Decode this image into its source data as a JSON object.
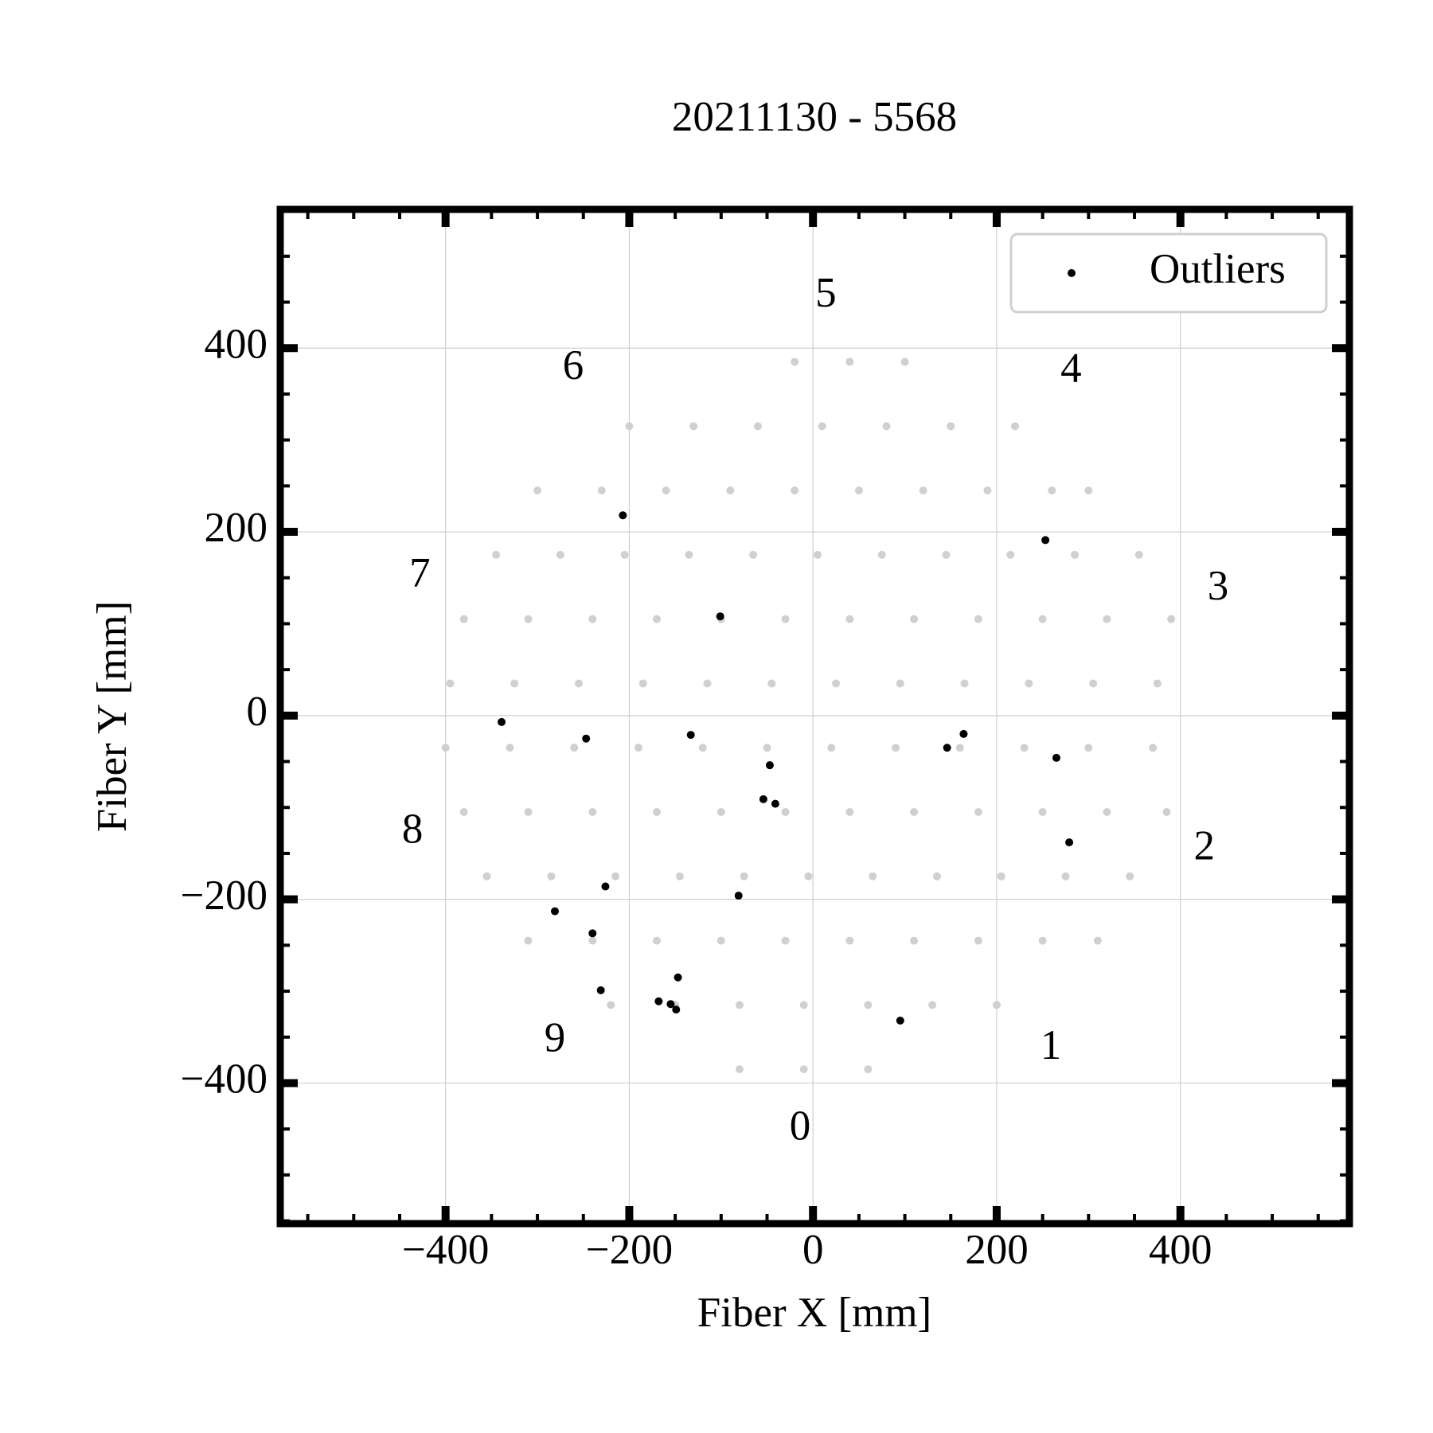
{
  "chart_data": {
    "type": "scatter",
    "title": "20211130 - 5568",
    "x_label": "Fiber X [mm]",
    "y_label": "Fiber Y [mm]",
    "xlim": [
      -580,
      584
    ],
    "ylim": [
      -553,
      551
    ],
    "xticks": [
      {
        "value": -400,
        "label": "−400"
      },
      {
        "value": -200,
        "label": "−200"
      },
      0,
      200,
      400
    ],
    "yticks": [
      {
        "value": -400,
        "label": "−400"
      },
      {
        "value": -200,
        "label": "−200"
      },
      0,
      200,
      400
    ],
    "xminorticks": [
      -550,
      -500,
      -450,
      -350,
      -300,
      -250,
      -150,
      -100,
      -50,
      50,
      100,
      150,
      250,
      300,
      350,
      450,
      500,
      550
    ],
    "yminorticks": [
      -550,
      -500,
      -450,
      -350,
      -300,
      -250,
      -150,
      -100,
      -50,
      50,
      100,
      150,
      250,
      300,
      350,
      450,
      500,
      550
    ],
    "grid": true,
    "legend": "upper right",
    "series": [
      {
        "color": "#d0d0d0",
        "x": [
          -20,
          40,
          100,
          -200,
          -130,
          -60,
          10,
          80,
          150,
          220,
          -300,
          -230,
          -160,
          -90,
          -20,
          50,
          120,
          190,
          260,
          300,
          -345,
          -275,
          -205,
          -135,
          -65,
          5,
          75,
          145,
          215,
          285,
          355,
          -380,
          -310,
          -240,
          -170,
          -100,
          -30,
          40,
          110,
          180,
          250,
          320,
          390,
          -395,
          -325,
          -255,
          -185,
          -115,
          -45,
          25,
          95,
          165,
          235,
          305,
          375,
          -400,
          -330,
          -260,
          -190,
          -120,
          -50,
          20,
          90,
          160,
          230,
          300,
          370,
          -380,
          -310,
          -240,
          -170,
          -100,
          -30,
          40,
          110,
          180,
          250,
          320,
          385,
          -355,
          -285,
          -215,
          -145,
          -75,
          -5,
          65,
          135,
          205,
          275,
          345,
          -310,
          -240,
          -170,
          -100,
          -30,
          40,
          110,
          180,
          250,
          310,
          -220,
          -150,
          -80,
          -10,
          60,
          130,
          200,
          -80,
          -10,
          60
        ],
        "values": [
          385,
          385,
          385,
          315,
          315,
          315,
          315,
          315,
          315,
          315,
          245,
          245,
          245,
          245,
          245,
          245,
          245,
          245,
          245,
          245,
          175,
          175,
          175,
          175,
          175,
          175,
          175,
          175,
          175,
          175,
          175,
          105,
          105,
          105,
          105,
          105,
          105,
          105,
          105,
          105,
          105,
          105,
          105,
          35,
          35,
          35,
          35,
          35,
          35,
          35,
          35,
          35,
          35,
          35,
          35,
          -35,
          -35,
          -35,
          -35,
          -35,
          -35,
          -35,
          -35,
          -35,
          -35,
          -35,
          -35,
          -105,
          -105,
          -105,
          -105,
          -105,
          -105,
          -105,
          -105,
          -105,
          -105,
          -105,
          -105,
          -175,
          -175,
          -175,
          -175,
          -175,
          -175,
          -175,
          -175,
          -175,
          -175,
          -175,
          -245,
          -245,
          -245,
          -245,
          -245,
          -245,
          -245,
          -245,
          -245,
          -245,
          -315,
          -315,
          -315,
          -315,
          -315,
          -315,
          -315,
          -385,
          -385,
          -385
        ]
      },
      {
        "name": "Outliers",
        "color": "#000000",
        "x": [
          -339,
          -247,
          -133,
          -101,
          -207,
          -47,
          -54,
          -41,
          -81,
          -226,
          -281,
          -240,
          -231,
          -147,
          -168,
          -155,
          -149,
          95,
          146,
          164,
          253,
          265,
          279
        ],
        "values": [
          -7,
          -25,
          -21,
          108,
          218,
          -54,
          -91,
          -96,
          -196,
          -186,
          -213,
          -237,
          -299,
          -285,
          -311,
          -314,
          -320,
          -332,
          -35,
          -20,
          191,
          -46,
          -138
        ]
      }
    ],
    "annotations": [
      {
        "text": "0",
        "x": -14,
        "y": -451
      },
      {
        "text": "1",
        "x": 259,
        "y": -363
      },
      {
        "text": "2",
        "x": 426,
        "y": -146
      },
      {
        "text": "3",
        "x": 441,
        "y": 137
      },
      {
        "text": "4",
        "x": 281,
        "y": 374
      },
      {
        "text": "5",
        "x": 14,
        "y": 456
      },
      {
        "text": "6",
        "x": -261,
        "y": 377
      },
      {
        "text": "7",
        "x": -428,
        "y": 151
      },
      {
        "text": "8",
        "x": -436,
        "y": -128
      },
      {
        "text": "9",
        "x": -281,
        "y": -355
      }
    ]
  }
}
